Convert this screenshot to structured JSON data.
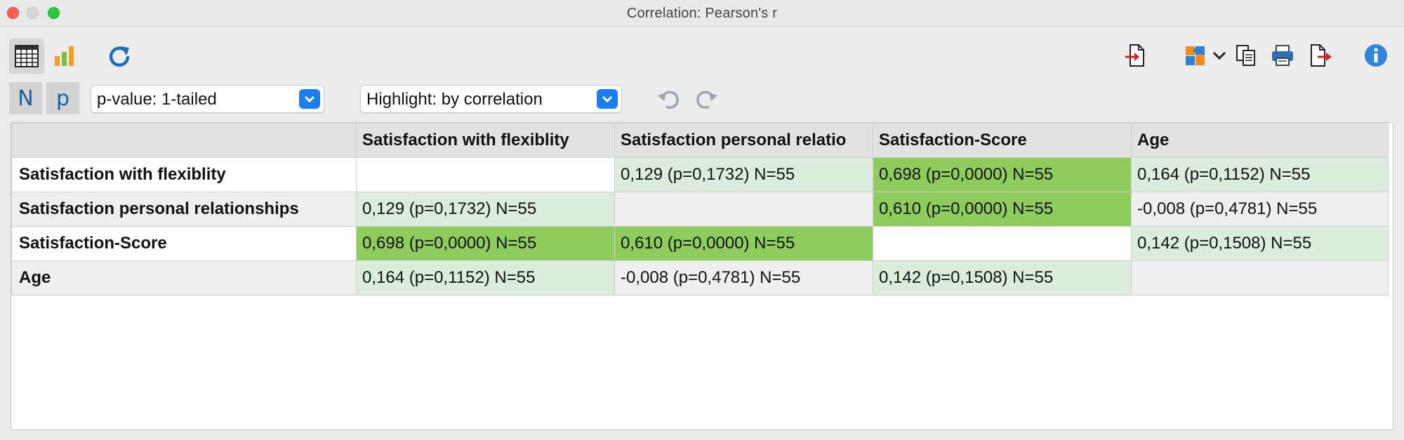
{
  "window": {
    "title": "Correlation: Pearson's r"
  },
  "toolbar": {
    "icons": [
      "table-view-icon",
      "chart-view-icon",
      "refresh-icon",
      "import-icon",
      "puzzle-icon",
      "copy-icon",
      "print-icon",
      "export-icon",
      "info-icon"
    ]
  },
  "controls": {
    "n_label": "N",
    "p_label": "p",
    "pvalue_select": "p-value: 1-tailed",
    "highlight_select": "Highlight: by correlation"
  },
  "colors": {
    "strong": "#8fcc5e",
    "weak": "#dcecdd",
    "none_row_alt": "#efefef",
    "accent": "#1a7ef5",
    "icon_blue": "#1f6fb7"
  },
  "table": {
    "columns": [
      "Satisfaction with flexiblity",
      "Satisfaction personal relatio",
      "Satisfaction-Score",
      "Age"
    ],
    "rows": [
      {
        "label": "Satisfaction with flexiblity",
        "cells": [
          {
            "text": "",
            "level": "none"
          },
          {
            "text": "0,129 (p=0,1732) N=55",
            "level": "weak"
          },
          {
            "text": "0,698 (p=0,0000) N=55",
            "level": "strong"
          },
          {
            "text": "0,164 (p=0,1152) N=55",
            "level": "weak"
          }
        ]
      },
      {
        "label": "Satisfaction personal relationships",
        "cells": [
          {
            "text": "0,129 (p=0,1732) N=55",
            "level": "weak"
          },
          {
            "text": "",
            "level": "none"
          },
          {
            "text": "0,610 (p=0,0000) N=55",
            "level": "strong"
          },
          {
            "text": "-0,008 (p=0,4781) N=55",
            "level": "none"
          }
        ]
      },
      {
        "label": "Satisfaction-Score",
        "cells": [
          {
            "text": "0,698 (p=0,0000) N=55",
            "level": "strong"
          },
          {
            "text": "0,610 (p=0,0000) N=55",
            "level": "strong"
          },
          {
            "text": "",
            "level": "none"
          },
          {
            "text": "0,142 (p=0,1508) N=55",
            "level": "weak"
          }
        ]
      },
      {
        "label": "Age",
        "cells": [
          {
            "text": "0,164 (p=0,1152) N=55",
            "level": "weak"
          },
          {
            "text": "-0,008 (p=0,4781) N=55",
            "level": "none"
          },
          {
            "text": "0,142 (p=0,1508) N=55",
            "level": "weak"
          },
          {
            "text": "",
            "level": "none"
          }
        ]
      }
    ]
  }
}
